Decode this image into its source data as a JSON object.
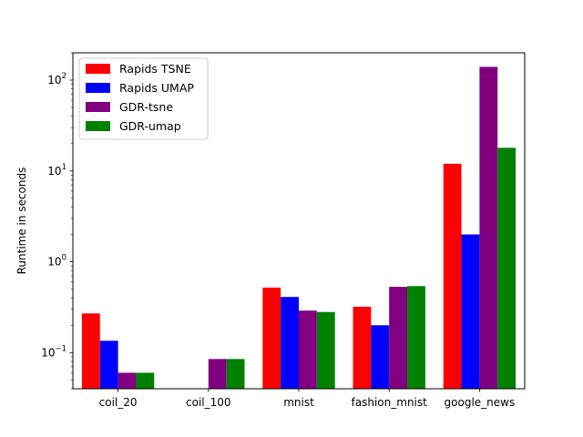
{
  "chart_data": {
    "type": "bar",
    "title": "",
    "xlabel": "",
    "ylabel": "Runtime in seconds",
    "yscale": "log",
    "ylim": [
      0.04,
      200
    ],
    "grid": false,
    "legend_position": "top-left",
    "categories": [
      "coil_20",
      "coil_100",
      "mnist",
      "fashion_mnist",
      "google_news"
    ],
    "y_ticks": [
      {
        "value": 0.1,
        "base": "10",
        "exp": "−1"
      },
      {
        "value": 1,
        "base": "10",
        "exp": "0"
      },
      {
        "value": 10,
        "base": "10",
        "exp": "1"
      },
      {
        "value": 100,
        "base": "10",
        "exp": "2"
      }
    ],
    "series": [
      {
        "name": "Rapids TSNE",
        "color": "#ff0000",
        "values": [
          0.27,
          null,
          0.52,
          0.32,
          12
        ]
      },
      {
        "name": "Rapids UMAP",
        "color": "#0000ff",
        "values": [
          0.135,
          null,
          0.41,
          0.2,
          2.0
        ]
      },
      {
        "name": "GDR-tsne",
        "color": "#800080",
        "values": [
          0.06,
          0.085,
          0.29,
          0.53,
          140
        ]
      },
      {
        "name": "GDR-umap",
        "color": "#008000",
        "values": [
          0.06,
          0.085,
          0.28,
          0.54,
          18
        ]
      }
    ]
  }
}
